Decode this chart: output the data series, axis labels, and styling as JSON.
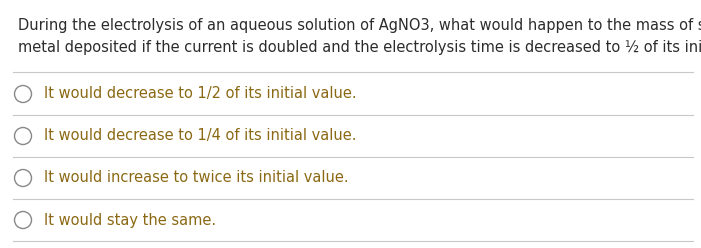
{
  "question_line1": "During the electrolysis of an aqueous solution of AgNO3, what would happen to the mass of silver",
  "question_line2": "metal deposited if the current is doubled and the electrolysis time is decreased to ½ of its initial value?",
  "options": [
    "It would decrease to 1/2 of its initial value.",
    "It would decrease to 1/4 of its initial value.",
    "It would increase to twice its initial value.",
    "It would stay the same."
  ],
  "question_color": "#2c2c2c",
  "option_color": "#8b6914",
  "bg_color": "#ffffff",
  "line_color": "#c8c8c8",
  "font_size_question": 10.5,
  "font_size_option": 10.5,
  "circle_edge_color": "#888888",
  "figwidth": 7.01,
  "figheight": 2.48,
  "dpi": 100
}
